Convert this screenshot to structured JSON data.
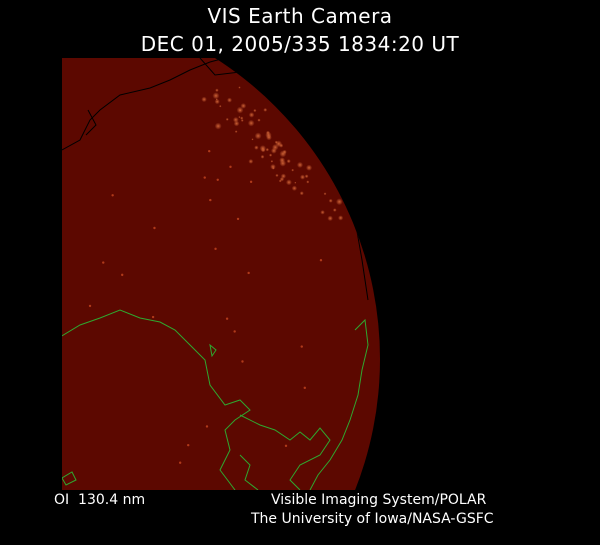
{
  "title": "VIS Earth Camera",
  "timestamp": "DEC 01, 2005/335 1834:20 UT",
  "band": "OI  130.4 nm",
  "instrument": "Visible Imaging System/POLAR",
  "organization": "The University of Iowa/NASA-GSFC",
  "colors": {
    "earth": "#5c0800",
    "background": "#000000",
    "coastline": "#2fa82f",
    "grid": "#000000",
    "aurora": "#d86a3a"
  }
}
